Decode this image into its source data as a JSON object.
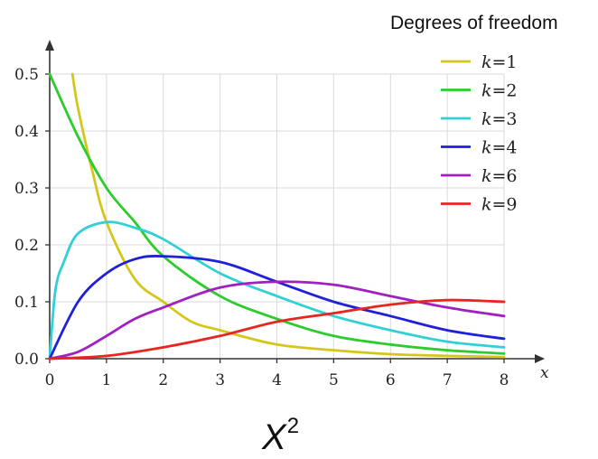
{
  "chart_data": {
    "type": "line",
    "legend_title": "Degrees of freedom",
    "xlabel_var": "x",
    "xtitle": {
      "base": "X",
      "sup": "2"
    },
    "xlim": [
      0,
      8
    ],
    "ylim": [
      0,
      0.5
    ],
    "xticks": [
      "0",
      "1",
      "2",
      "3",
      "4",
      "5",
      "6",
      "7",
      "8"
    ],
    "yticks": [
      "0.0",
      "0.1",
      "0.2",
      "0.3",
      "0.4",
      "0.5"
    ],
    "grid": true,
    "legend_position": "top-right",
    "series": [
      {
        "name": "k=1",
        "k": 1,
        "color": "#d4c61b",
        "x": [
          0.4,
          0.5,
          0.75,
          1,
          1.5,
          2,
          2.5,
          3,
          4,
          5,
          6,
          7,
          8
        ],
        "y": [
          0.5,
          0.44,
          0.33,
          0.24,
          0.14,
          0.1,
          0.065,
          0.05,
          0.025,
          0.015,
          0.008,
          0.005,
          0.003
        ]
      },
      {
        "name": "k=2",
        "k": 2,
        "color": "#2ccc2c",
        "x": [
          0,
          0.5,
          1,
          1.5,
          2,
          3,
          4,
          5,
          6,
          7,
          8
        ],
        "y": [
          0.5,
          0.39,
          0.3,
          0.24,
          0.18,
          0.11,
          0.07,
          0.04,
          0.025,
          0.015,
          0.009
        ]
      },
      {
        "name": "k=3",
        "k": 3,
        "color": "#30d0d6",
        "x": [
          0,
          0.1,
          0.25,
          0.5,
          1,
          1.5,
          2,
          3,
          4,
          5,
          6,
          7,
          8
        ],
        "y": [
          0,
          0.12,
          0.17,
          0.22,
          0.24,
          0.23,
          0.21,
          0.15,
          0.11,
          0.075,
          0.05,
          0.03,
          0.02
        ]
      },
      {
        "name": "k=4",
        "k": 4,
        "color": "#2020d8",
        "x": [
          0,
          0.5,
          1,
          1.5,
          2,
          3,
          4,
          5,
          6,
          7,
          8
        ],
        "y": [
          0,
          0.1,
          0.15,
          0.175,
          0.18,
          0.17,
          0.135,
          0.1,
          0.075,
          0.05,
          0.035
        ]
      },
      {
        "name": "k=6",
        "k": 6,
        "color": "#a020c0",
        "x": [
          0,
          0.5,
          1,
          1.5,
          2,
          3,
          4,
          5,
          6,
          7,
          8
        ],
        "y": [
          0,
          0.012,
          0.04,
          0.07,
          0.09,
          0.125,
          0.135,
          0.13,
          0.11,
          0.09,
          0.075
        ]
      },
      {
        "name": "k=9",
        "k": 9,
        "color": "#e8251f",
        "x": [
          0,
          1,
          2,
          3,
          4,
          5,
          6,
          7,
          8
        ],
        "y": [
          0,
          0.005,
          0.02,
          0.04,
          0.065,
          0.08,
          0.095,
          0.103,
          0.1
        ]
      }
    ]
  }
}
